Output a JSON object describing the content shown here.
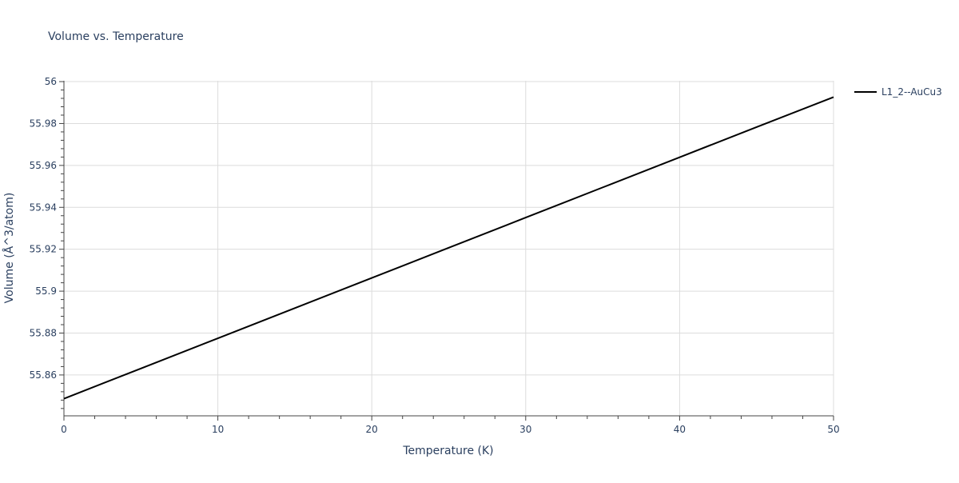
{
  "chart_data": {
    "type": "line",
    "title": "Volume vs. Temperature",
    "xlabel": "Temperature (K)",
    "ylabel": "Volume (Å^3/atom)",
    "xlim": [
      0,
      50
    ],
    "ylim": [
      55.8405,
      56.0004
    ],
    "xticks": [
      0,
      10,
      20,
      30,
      40,
      50
    ],
    "xtick_labels": [
      "0",
      "10",
      "20",
      "30",
      "40",
      "50"
    ],
    "yticks": [
      55.86,
      55.88,
      55.9,
      55.92,
      55.94,
      55.96,
      55.98,
      56
    ],
    "ytick_labels": [
      "55.86",
      "55.88",
      "55.9",
      "55.92",
      "55.94",
      "55.96",
      "55.98",
      "56"
    ],
    "grid": true,
    "legend_position": "top-right",
    "series": [
      {
        "name": "L1_2--AuCu3",
        "color": "#000000",
        "x": [
          0,
          5,
          10,
          15,
          20,
          25,
          30,
          35,
          40,
          45,
          50
        ],
        "y": [
          55.8487,
          55.8631,
          55.8775,
          55.8919,
          55.9063,
          55.9207,
          55.9351,
          55.9495,
          55.9639,
          55.9783,
          55.9926
        ]
      }
    ]
  }
}
